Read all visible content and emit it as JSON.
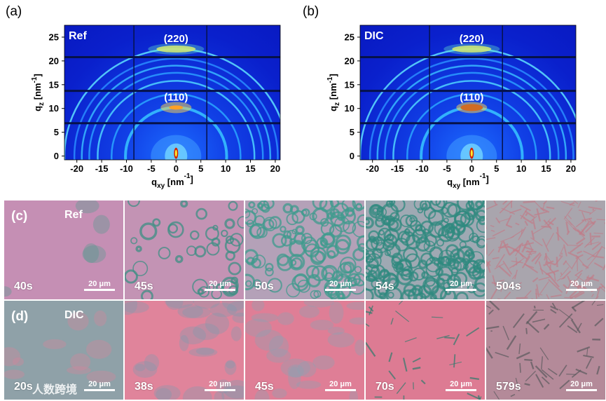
{
  "figure": {
    "panels": {
      "a": {
        "label": "(a)",
        "sample": "Ref",
        "peaks": [
          "(220)",
          "(110)"
        ],
        "peak_q": [
          22.5,
          10.2
        ]
      },
      "b": {
        "label": "(b)",
        "sample": "DIC",
        "peaks": [
          "(220)",
          "(110)"
        ],
        "peak_q": [
          22.5,
          10.2
        ]
      },
      "c": {
        "label": "(c)",
        "sample": "Ref"
      },
      "d": {
        "label": "(d)",
        "sample": "DIC"
      }
    },
    "watermark": "人数跨境",
    "scale_text": "20 μm"
  },
  "chart_data": [
    {
      "type": "heatmap",
      "panel": "(a)",
      "title": "Ref",
      "xlabel_main": "q",
      "xlabel_sub": "xy",
      "xlabel_unit": " [nm",
      "xlabel_exp": "-1",
      "xlabel_close": "]",
      "ylabel_main": "q",
      "ylabel_sub": "z",
      "ylabel_unit": " [nm",
      "ylabel_exp": "-1",
      "ylabel_close": "]",
      "xlim": [
        -22.5,
        21
      ],
      "ylim": [
        -0.8,
        27.5
      ],
      "x_ticks": [
        -20,
        -15,
        -10,
        -5,
        0,
        5,
        10,
        15,
        20
      ],
      "y_ticks": [
        0,
        5,
        10,
        15,
        20,
        25
      ],
      "rings_q": [
        10.2,
        13.0,
        15.8,
        17.5,
        19.0,
        20.5,
        22.5
      ],
      "annotations": [
        "(220)",
        "(110)"
      ]
    },
    {
      "type": "heatmap",
      "panel": "(b)",
      "title": "DIC",
      "xlabel_main": "q",
      "xlabel_sub": "xy",
      "xlabel_unit": " [nm",
      "xlabel_exp": "-1",
      "xlabel_close": "]",
      "ylabel_main": "q",
      "ylabel_sub": "z",
      "ylabel_unit": " [nm",
      "ylabel_exp": "-1",
      "ylabel_close": "]",
      "xlim": [
        -22.5,
        21
      ],
      "ylim": [
        -0.8,
        27.5
      ],
      "x_ticks": [
        -20,
        -15,
        -10,
        -5,
        0,
        5,
        10,
        15,
        20
      ],
      "y_ticks": [
        0,
        5,
        10,
        15,
        20,
        25
      ],
      "rings_q": [
        10.2,
        13.0,
        15.8,
        17.5,
        19.0,
        20.5,
        22.5
      ],
      "annotations": [
        "(220)",
        "(110)"
      ]
    }
  ],
  "micrographs": {
    "row_c": {
      "row_label": "(c)",
      "sample": "Ref",
      "times": [
        "40s",
        "45s",
        "50s",
        "54s",
        "504s"
      ],
      "base_colors": [
        "#c58fb4",
        "#c393b4",
        "#b4a1b8",
        "#9fa9b3",
        "#a9a5ad"
      ],
      "feature_colors": [
        "#4f9a8c",
        "#3e8f84",
        "#3f9b8d",
        "#2f8a7f",
        "#c07e8a"
      ],
      "feature_counts": [
        5,
        40,
        120,
        200,
        220
      ]
    },
    "row_d": {
      "row_label": "(d)",
      "sample": "DIC",
      "times": [
        "20s",
        "38s",
        "45s",
        "70s",
        "579s"
      ],
      "base_colors": [
        "#8fa1a8",
        "#e0849b",
        "#df7e96",
        "#dd7b93",
        "#b48a99"
      ],
      "feature_colors": [
        "#d7849c",
        "#7f9bb0",
        "#8aa3b5",
        "#2f7c6d",
        "#5b5a5e"
      ],
      "feature_counts": [
        10,
        30,
        25,
        30,
        60
      ]
    }
  }
}
